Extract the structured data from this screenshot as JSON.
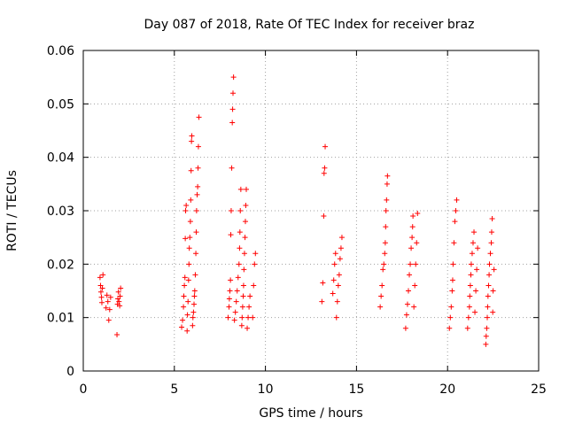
{
  "chart_data": {
    "type": "scatter",
    "title": "Day 087 of 2018, Rate Of TEC Index for receiver braz",
    "xlabel": "GPS time / hours",
    "ylabel": "ROTI / TECUs",
    "xlim": [
      0,
      25
    ],
    "ylim": [
      0,
      0.06
    ],
    "xticks": [
      0,
      5,
      10,
      15,
      20,
      25
    ],
    "xtick_labels": [
      "0",
      "5",
      "10",
      "15",
      "20",
      "25"
    ],
    "yticks": [
      0,
      0.01,
      0.02,
      0.03,
      0.04,
      0.05,
      0.06
    ],
    "ytick_labels": [
      "0",
      "0.01",
      "0.02",
      "0.03",
      "0.04",
      "0.05",
      "0.06"
    ],
    "grid": true,
    "marker": "plus",
    "color": "#ff0000",
    "series": [
      {
        "points": [
          [
            0.92,
            0.0175
          ],
          [
            0.95,
            0.016
          ],
          [
            0.97,
            0.0148
          ],
          [
            1.0,
            0.0138
          ],
          [
            1.02,
            0.0128
          ],
          [
            1.05,
            0.0155
          ],
          [
            1.08,
            0.018
          ],
          [
            1.25,
            0.0118
          ],
          [
            1.3,
            0.0142
          ],
          [
            1.35,
            0.013
          ],
          [
            1.4,
            0.0095
          ],
          [
            1.45,
            0.0115
          ],
          [
            1.5,
            0.0138
          ],
          [
            1.85,
            0.0068
          ],
          [
            1.88,
            0.0125
          ],
          [
            1.9,
            0.0135
          ],
          [
            1.93,
            0.0148
          ],
          [
            1.96,
            0.013
          ],
          [
            2.0,
            0.0122
          ],
          [
            2.02,
            0.014
          ],
          [
            2.05,
            0.0155
          ],
          [
            5.4,
            0.0082
          ],
          [
            5.45,
            0.0095
          ],
          [
            5.5,
            0.012
          ],
          [
            5.52,
            0.014
          ],
          [
            5.55,
            0.016
          ],
          [
            5.58,
            0.0175
          ],
          [
            5.6,
            0.0248
          ],
          [
            5.62,
            0.03
          ],
          [
            5.65,
            0.031
          ],
          [
            5.7,
            0.0075
          ],
          [
            5.72,
            0.0105
          ],
          [
            5.75,
            0.013
          ],
          [
            5.78,
            0.017
          ],
          [
            5.8,
            0.02
          ],
          [
            5.82,
            0.023
          ],
          [
            5.85,
            0.025
          ],
          [
            5.88,
            0.028
          ],
          [
            5.9,
            0.032
          ],
          [
            5.92,
            0.0375
          ],
          [
            5.94,
            0.043
          ],
          [
            5.96,
            0.044
          ],
          [
            6.0,
            0.0085
          ],
          [
            6.02,
            0.01
          ],
          [
            6.05,
            0.011
          ],
          [
            6.08,
            0.0125
          ],
          [
            6.1,
            0.014
          ],
          [
            6.12,
            0.015
          ],
          [
            6.15,
            0.018
          ],
          [
            6.18,
            0.022
          ],
          [
            6.2,
            0.026
          ],
          [
            6.22,
            0.03
          ],
          [
            6.25,
            0.033
          ],
          [
            6.28,
            0.0345
          ],
          [
            6.3,
            0.038
          ],
          [
            6.32,
            0.042
          ],
          [
            6.35,
            0.0475
          ],
          [
            7.95,
            0.01
          ],
          [
            8.0,
            0.012
          ],
          [
            8.02,
            0.0135
          ],
          [
            8.05,
            0.015
          ],
          [
            8.08,
            0.017
          ],
          [
            8.1,
            0.0255
          ],
          [
            8.12,
            0.03
          ],
          [
            8.15,
            0.038
          ],
          [
            8.18,
            0.0465
          ],
          [
            8.2,
            0.049
          ],
          [
            8.22,
            0.052
          ],
          [
            8.25,
            0.055
          ],
          [
            8.3,
            0.0095
          ],
          [
            8.35,
            0.011
          ],
          [
            8.4,
            0.013
          ],
          [
            8.45,
            0.015
          ],
          [
            8.5,
            0.0175
          ],
          [
            8.55,
            0.02
          ],
          [
            8.58,
            0.023
          ],
          [
            8.6,
            0.026
          ],
          [
            8.62,
            0.03
          ],
          [
            8.65,
            0.034
          ],
          [
            8.7,
            0.0085
          ],
          [
            8.72,
            0.01
          ],
          [
            8.75,
            0.012
          ],
          [
            8.78,
            0.014
          ],
          [
            8.8,
            0.016
          ],
          [
            8.82,
            0.019
          ],
          [
            8.85,
            0.022
          ],
          [
            8.88,
            0.025
          ],
          [
            8.9,
            0.028
          ],
          [
            8.92,
            0.031
          ],
          [
            8.95,
            0.034
          ],
          [
            9.0,
            0.008
          ],
          [
            9.05,
            0.01
          ],
          [
            9.1,
            0.012
          ],
          [
            9.15,
            0.014
          ],
          [
            9.3,
            0.01
          ],
          [
            9.35,
            0.016
          ],
          [
            9.4,
            0.02
          ],
          [
            9.45,
            0.022
          ],
          [
            13.1,
            0.013
          ],
          [
            13.15,
            0.0165
          ],
          [
            13.2,
            0.029
          ],
          [
            13.22,
            0.037
          ],
          [
            13.25,
            0.038
          ],
          [
            13.28,
            0.042
          ],
          [
            13.7,
            0.0145
          ],
          [
            13.75,
            0.017
          ],
          [
            13.8,
            0.02
          ],
          [
            13.85,
            0.022
          ],
          [
            13.9,
            0.01
          ],
          [
            13.95,
            0.013
          ],
          [
            14.0,
            0.016
          ],
          [
            14.05,
            0.018
          ],
          [
            14.1,
            0.021
          ],
          [
            14.15,
            0.023
          ],
          [
            14.2,
            0.025
          ],
          [
            16.3,
            0.012
          ],
          [
            16.35,
            0.014
          ],
          [
            16.4,
            0.016
          ],
          [
            16.45,
            0.019
          ],
          [
            16.5,
            0.02
          ],
          [
            16.55,
            0.022
          ],
          [
            16.58,
            0.024
          ],
          [
            16.6,
            0.027
          ],
          [
            16.62,
            0.03
          ],
          [
            16.65,
            0.032
          ],
          [
            16.68,
            0.035
          ],
          [
            16.7,
            0.0365
          ],
          [
            17.7,
            0.008
          ],
          [
            17.75,
            0.0105
          ],
          [
            17.8,
            0.0125
          ],
          [
            17.85,
            0.015
          ],
          [
            17.9,
            0.018
          ],
          [
            17.95,
            0.02
          ],
          [
            18.0,
            0.023
          ],
          [
            18.05,
            0.025
          ],
          [
            18.08,
            0.027
          ],
          [
            18.1,
            0.029
          ],
          [
            18.15,
            0.012
          ],
          [
            18.2,
            0.016
          ],
          [
            18.25,
            0.02
          ],
          [
            18.3,
            0.024
          ],
          [
            18.35,
            0.0295
          ],
          [
            20.1,
            0.008
          ],
          [
            20.15,
            0.01
          ],
          [
            20.2,
            0.012
          ],
          [
            20.25,
            0.015
          ],
          [
            20.28,
            0.017
          ],
          [
            20.3,
            0.02
          ],
          [
            20.35,
            0.024
          ],
          [
            20.4,
            0.028
          ],
          [
            20.45,
            0.03
          ],
          [
            20.5,
            0.032
          ],
          [
            21.1,
            0.008
          ],
          [
            21.15,
            0.01
          ],
          [
            21.2,
            0.012
          ],
          [
            21.22,
            0.014
          ],
          [
            21.25,
            0.016
          ],
          [
            21.28,
            0.018
          ],
          [
            21.3,
            0.02
          ],
          [
            21.35,
            0.022
          ],
          [
            21.4,
            0.024
          ],
          [
            21.45,
            0.026
          ],
          [
            21.5,
            0.011
          ],
          [
            21.55,
            0.015
          ],
          [
            21.6,
            0.019
          ],
          [
            21.65,
            0.023
          ],
          [
            22.1,
            0.005
          ],
          [
            22.12,
            0.0065
          ],
          [
            22.15,
            0.008
          ],
          [
            22.18,
            0.01
          ],
          [
            22.2,
            0.012
          ],
          [
            22.22,
            0.014
          ],
          [
            22.25,
            0.016
          ],
          [
            22.28,
            0.018
          ],
          [
            22.3,
            0.02
          ],
          [
            22.35,
            0.022
          ],
          [
            22.4,
            0.024
          ],
          [
            22.42,
            0.026
          ],
          [
            22.45,
            0.0285
          ],
          [
            22.48,
            0.011
          ],
          [
            22.5,
            0.015
          ],
          [
            22.55,
            0.019
          ]
        ]
      }
    ]
  }
}
